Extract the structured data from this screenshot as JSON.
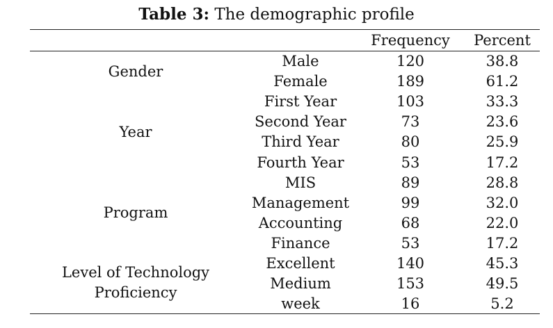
{
  "caption": {
    "label": "Table 3:",
    "text": "The demographic profile"
  },
  "headers": {
    "frequency": "Frequency",
    "percent": "Percent"
  },
  "groups": {
    "gender": "Gender",
    "year": "Year",
    "program": "Program",
    "tech_line1": "Level of Technology",
    "tech_line2": "Proficiency"
  },
  "rows": [
    {
      "category": "Male",
      "frequency": "120",
      "percent": "38.8"
    },
    {
      "category": "Female",
      "frequency": "189",
      "percent": "61.2"
    },
    {
      "category": "First Year",
      "frequency": "103",
      "percent": "33.3"
    },
    {
      "category": "Second Year",
      "frequency": "73",
      "percent": "23.6"
    },
    {
      "category": "Third Year",
      "frequency": "80",
      "percent": "25.9"
    },
    {
      "category": "Fourth Year",
      "frequency": "53",
      "percent": "17.2"
    },
    {
      "category": "MIS",
      "frequency": "89",
      "percent": "28.8"
    },
    {
      "category": "Management",
      "frequency": "99",
      "percent": "32.0"
    },
    {
      "category": "Accounting",
      "frequency": "68",
      "percent": "22.0"
    },
    {
      "category": "Finance",
      "frequency": "53",
      "percent": "17.2"
    },
    {
      "category": "Excellent",
      "frequency": "140",
      "percent": "45.3"
    },
    {
      "category": "Medium",
      "frequency": "153",
      "percent": "49.5"
    },
    {
      "category": "week",
      "frequency": "16",
      "percent": "5.2"
    }
  ]
}
